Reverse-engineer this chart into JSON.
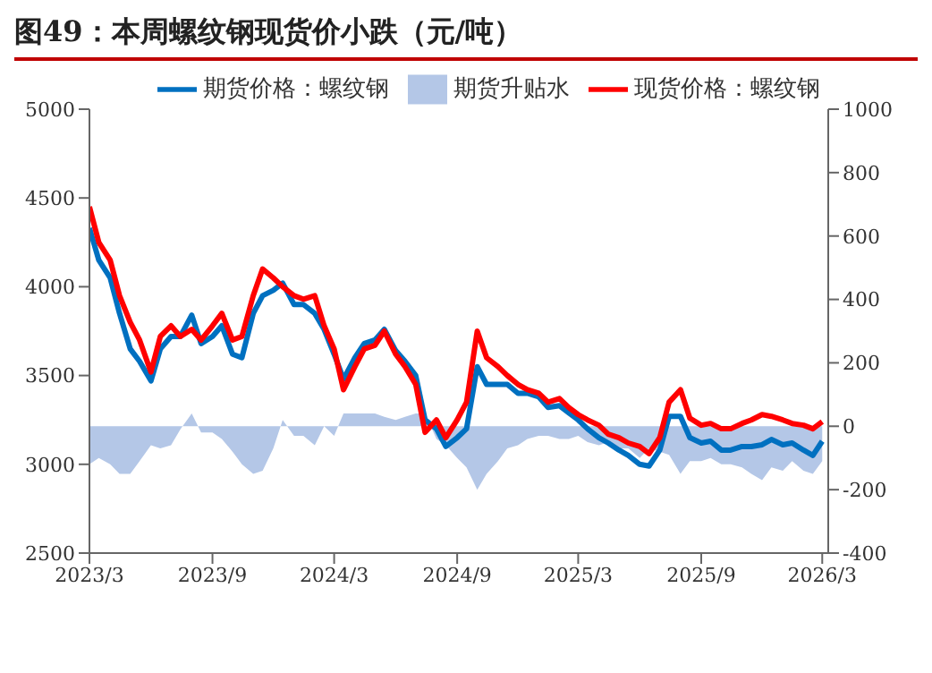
{
  "chart_data": {
    "type": "line",
    "title": "图49：本周螺纹钢现货价小跌（元/吨）",
    "x": [
      "2023-03-01",
      "2023-03-15",
      "2023-04-01",
      "2023-04-15",
      "2023-05-01",
      "2023-05-15",
      "2023-06-01",
      "2023-06-15",
      "2023-07-01",
      "2023-07-15",
      "2023-08-01",
      "2023-08-15",
      "2023-09-01",
      "2023-09-15",
      "2023-10-01",
      "2023-10-15",
      "2023-11-01",
      "2023-11-15",
      "2023-12-01",
      "2023-12-15",
      "2024-01-01",
      "2024-01-15",
      "2024-02-01",
      "2024-02-15",
      "2024-03-01",
      "2024-03-15",
      "2024-04-01",
      "2024-04-15",
      "2024-05-01",
      "2024-05-15",
      "2024-06-01",
      "2024-06-15",
      "2024-07-01",
      "2024-07-15",
      "2024-08-01",
      "2024-08-15",
      "2024-09-01",
      "2024-09-15",
      "2024-10-01",
      "2024-10-15",
      "2024-11-01",
      "2024-11-15",
      "2024-12-01",
      "2024-12-15",
      "2025-01-01",
      "2025-01-15",
      "2025-02-01",
      "2025-02-15",
      "2025-03-01",
      "2025-03-15",
      "2025-04-01",
      "2025-04-15",
      "2025-05-01",
      "2025-05-15",
      "2025-06-01",
      "2025-06-15",
      "2025-07-01",
      "2025-07-15",
      "2025-08-01",
      "2025-08-15",
      "2025-09-01",
      "2025-09-15",
      "2025-10-01",
      "2025-10-15",
      "2025-11-01",
      "2025-11-15",
      "2025-12-01",
      "2025-12-15",
      "2026-01-01",
      "2026-01-15",
      "2026-02-01",
      "2026-02-15",
      "2026-03-01"
    ],
    "series": [
      {
        "name": "期货升贴水",
        "type": "area",
        "axis": "y2",
        "color": "#b4c7e7",
        "values": [
          -120,
          -100,
          -120,
          -150,
          -150,
          -110,
          -60,
          -70,
          -60,
          -10,
          40,
          -20,
          -20,
          -40,
          -80,
          -120,
          -150,
          -140,
          -70,
          20,
          -30,
          -30,
          -60,
          0,
          -30,
          40,
          40,
          40,
          40,
          30,
          20,
          30,
          40,
          40,
          -40,
          -60,
          -100,
          -130,
          -200,
          -150,
          -110,
          -70,
          -60,
          -40,
          -30,
          -30,
          -40,
          -40,
          -30,
          -50,
          -60,
          -50,
          -70,
          -70,
          -100,
          -70,
          -80,
          -90,
          -150,
          -110,
          -110,
          -100,
          -120,
          -120,
          -130,
          -150,
          -170,
          -130,
          -140,
          -110,
          -140,
          -150,
          -110
        ]
      },
      {
        "name": "期货价格：螺纹钢",
        "color": "#0070c0",
        "values": [
          4330,
          4150,
          4050,
          3850,
          3650,
          3580,
          3470,
          3650,
          3720,
          3720,
          3840,
          3680,
          3720,
          3780,
          3620,
          3600,
          3850,
          3950,
          3980,
          4020,
          3900,
          3900,
          3850,
          3760,
          3620,
          3480,
          3600,
          3680,
          3700,
          3760,
          3640,
          3580,
          3500,
          3250,
          3200,
          3100,
          3150,
          3200,
          3550,
          3450,
          3450,
          3450,
          3400,
          3400,
          3380,
          3320,
          3330,
          3290,
          3250,
          3200,
          3150,
          3120,
          3080,
          3050,
          3000,
          2990,
          3080,
          3270,
          3270,
          3150,
          3120,
          3130,
          3080,
          3080,
          3100,
          3100,
          3110,
          3140,
          3110,
          3120,
          3080,
          3050,
          3130
        ]
      },
      {
        "name": "现货价格：螺纹钢",
        "color": "#ff0000",
        "values": [
          4450,
          4250,
          4150,
          3950,
          3800,
          3700,
          3520,
          3720,
          3780,
          3720,
          3760,
          3700,
          3780,
          3850,
          3700,
          3720,
          3950,
          4100,
          4050,
          4000,
          3950,
          3930,
          3950,
          3780,
          3650,
          3420,
          3550,
          3650,
          3670,
          3750,
          3620,
          3550,
          3450,
          3180,
          3250,
          3150,
          3250,
          3350,
          3750,
          3600,
          3550,
          3500,
          3450,
          3420,
          3400,
          3350,
          3370,
          3320,
          3280,
          3250,
          3220,
          3170,
          3150,
          3120,
          3100,
          3060,
          3150,
          3350,
          3420,
          3260,
          3220,
          3230,
          3200,
          3200,
          3230,
          3250,
          3280,
          3270,
          3250,
          3230,
          3220,
          3200,
          3240
        ]
      }
    ],
    "xlim": [
      "2023-03-01",
      "2026-03-10"
    ],
    "xticks": [
      {
        "value": "2023-03-01",
        "label": "2023/3"
      },
      {
        "value": "2023-09-01",
        "label": "2023/9"
      },
      {
        "value": "2024-03-01",
        "label": "2024/3"
      },
      {
        "value": "2024-09-01",
        "label": "2024/9"
      },
      {
        "value": "2025-03-01",
        "label": "2025/3"
      },
      {
        "value": "2025-09-01",
        "label": "2025/9"
      },
      {
        "value": "2026-03-01",
        "label": "2026/3"
      }
    ],
    "ylim": [
      2500,
      5000
    ],
    "yticks": [
      2500,
      3000,
      3500,
      4000,
      4500,
      5000
    ],
    "y2lim": [
      -400,
      1000
    ],
    "y2ticks": [
      -400,
      -200,
      0,
      200,
      400,
      600,
      800,
      1000
    ],
    "grid": false,
    "legend": "top"
  }
}
